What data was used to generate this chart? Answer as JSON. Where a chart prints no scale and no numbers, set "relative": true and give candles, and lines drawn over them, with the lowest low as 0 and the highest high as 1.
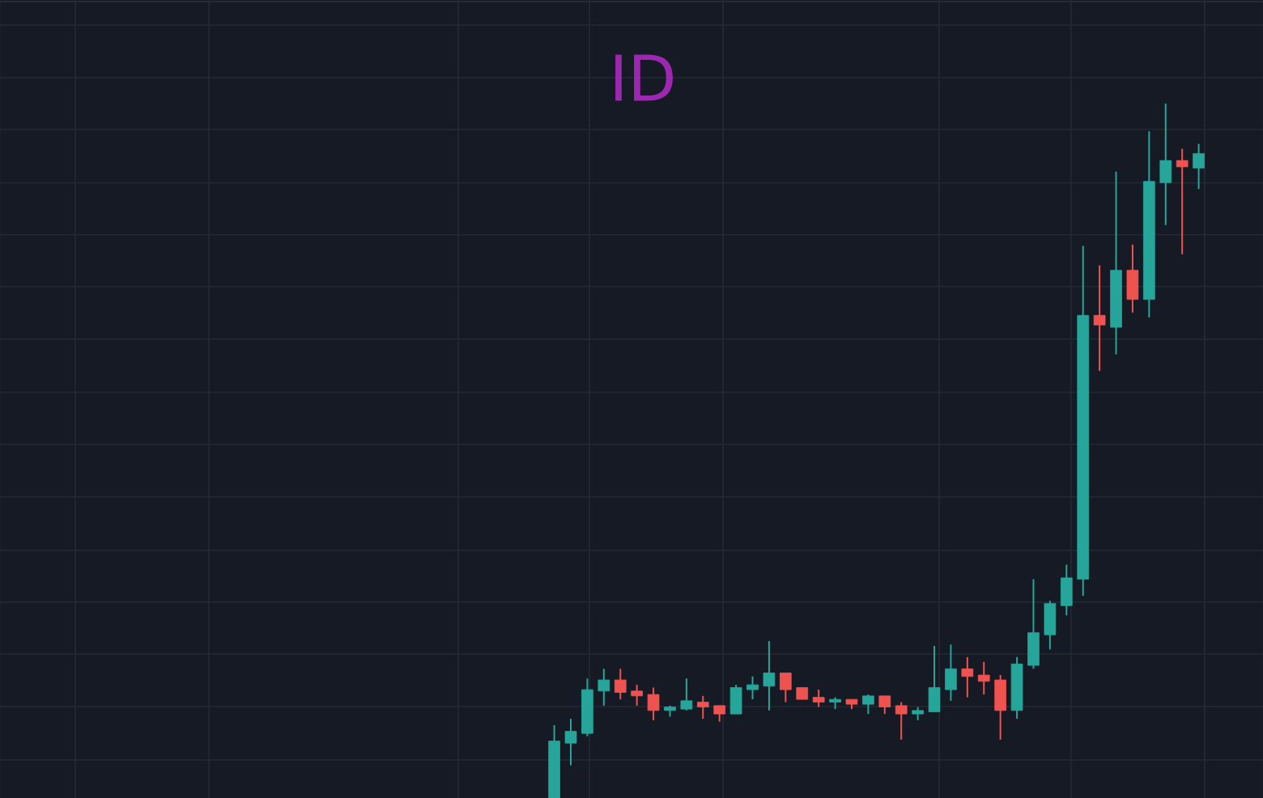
{
  "chart_data": {
    "type": "candlestick",
    "title": "ID",
    "relative": true,
    "grid": true,
    "categories": [
      null,
      null,
      null,
      null,
      null,
      null,
      null,
      null,
      null,
      null,
      null,
      null,
      null,
      null,
      null,
      null,
      null,
      null,
      null,
      null,
      null,
      null,
      null,
      null,
      null,
      null,
      null,
      null,
      null,
      null,
      null,
      null,
      null,
      null,
      null,
      null,
      null,
      null,
      null,
      null
    ],
    "ohlc": [
      [
        0,
        0.105,
        0,
        0.082
      ],
      [
        0.079,
        0.114,
        0.047,
        0.096
      ],
      [
        0.093,
        0.172,
        0.089,
        0.156
      ],
      [
        0.154,
        0.186,
        0.133,
        0.17
      ],
      [
        0.17,
        0.186,
        0.142,
        0.152
      ],
      [
        0.154,
        0.163,
        0.133,
        0.147
      ],
      [
        0.149,
        0.159,
        0.112,
        0.126
      ],
      [
        0.126,
        0.133,
        0.117,
        0.131
      ],
      [
        0.128,
        0.172,
        0.126,
        0.14
      ],
      [
        0.138,
        0.147,
        0.114,
        0.131
      ],
      [
        0.133,
        0.133,
        0.11,
        0.121
      ],
      [
        0.121,
        0.163,
        0.121,
        0.159
      ],
      [
        0.156,
        0.175,
        0.142,
        0.163
      ],
      [
        0.161,
        0.226,
        0.126,
        0.18
      ],
      [
        0.18,
        0.18,
        0.138,
        0.156
      ],
      [
        0.159,
        0.159,
        0.142,
        0.142
      ],
      [
        0.145,
        0.156,
        0.131,
        0.138
      ],
      [
        0.138,
        0.145,
        0.128,
        0.142
      ],
      [
        0.142,
        0.142,
        0.128,
        0.135
      ],
      [
        0.135,
        0.149,
        0.121,
        0.147
      ],
      [
        0.147,
        0.147,
        0.121,
        0.131
      ],
      [
        0.133,
        0.138,
        0.084,
        0.121
      ],
      [
        0.121,
        0.131,
        0.112,
        0.126
      ],
      [
        0.124,
        0.219,
        0.124,
        0.159
      ],
      [
        0.156,
        0.221,
        0.14,
        0.186
      ],
      [
        0.186,
        0.203,
        0.145,
        0.175
      ],
      [
        0.177,
        0.196,
        0.149,
        0.168
      ],
      [
        0.17,
        0.177,
        0.084,
        0.126
      ],
      [
        0.126,
        0.203,
        0.114,
        0.193
      ],
      [
        0.191,
        0.315,
        0.186,
        0.238
      ],
      [
        0.235,
        0.284,
        0.214,
        0.28
      ],
      [
        0.277,
        0.336,
        0.263,
        0.317
      ],
      [
        0.315,
        0.795,
        0.291,
        0.695
      ],
      [
        0.695,
        0.767,
        0.615,
        0.681
      ],
      [
        0.678,
        0.902,
        0.639,
        0.76
      ],
      [
        0.76,
        0.797,
        0.699,
        0.718
      ],
      [
        0.718,
        0.96,
        0.692,
        0.888
      ],
      [
        0.886,
        1,
        0.825,
        0.918
      ],
      [
        0.918,
        0.935,
        0.783,
        0.909
      ],
      [
        0.907,
        0.942,
        0.877,
        0.928
      ]
    ],
    "colors": [
      "#26a69a",
      "#26a69a",
      "#26a69a",
      "#26a69a",
      "#ef5350",
      "#ef5350",
      "#ef5350",
      "#26a69a",
      "#26a69a",
      "#ef5350",
      "#ef5350",
      "#26a69a",
      "#26a69a",
      "#26a69a",
      "#ef5350",
      "#ef5350",
      "#ef5350",
      "#26a69a",
      "#ef5350",
      "#26a69a",
      "#ef5350",
      "#ef5350",
      "#26a69a",
      "#26a69a",
      "#26a69a",
      "#ef5350",
      "#ef5350",
      "#ef5350",
      "#26a69a",
      "#26a69a",
      "#26a69a",
      "#26a69a",
      "#26a69a",
      "#ef5350",
      "#26a69a",
      "#ef5350",
      "#26a69a",
      "#26a69a",
      "#ef5350",
      "#26a69a"
    ]
  }
}
